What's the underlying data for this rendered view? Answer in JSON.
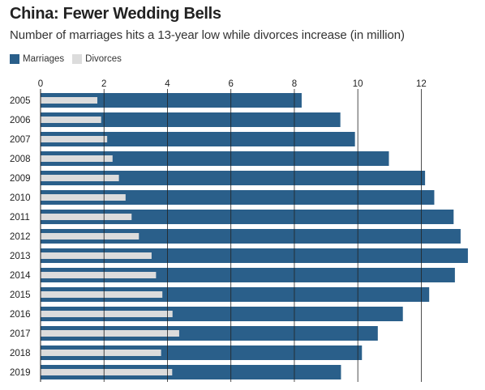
{
  "header": {
    "title": "China: Fewer Wedding Bells",
    "subtitle": "Number of marriages hits a 13-year low while divorces increase (in million)"
  },
  "legend": {
    "marriages_label": "Marriages",
    "divorces_label": "Divorces"
  },
  "colors": {
    "marriages": "#2a5f8a",
    "divorces": "#dcdcdc",
    "gridline": "#222222"
  },
  "chart_data": {
    "type": "bar",
    "orientation": "horizontal",
    "categories": [
      "2005",
      "2006",
      "2007",
      "2008",
      "2009",
      "2010",
      "2011",
      "2012",
      "2013",
      "2014",
      "2015",
      "2016",
      "2017",
      "2018",
      "2019"
    ],
    "series": [
      {
        "name": "Marriages",
        "values": [
          8.23,
          9.45,
          9.91,
          10.98,
          12.12,
          12.41,
          13.02,
          13.24,
          13.47,
          13.06,
          12.25,
          11.42,
          10.63,
          10.13,
          9.47
        ]
      },
      {
        "name": "Divorces",
        "values": [
          1.79,
          1.91,
          2.1,
          2.27,
          2.47,
          2.68,
          2.87,
          3.1,
          3.5,
          3.64,
          3.84,
          4.16,
          4.37,
          3.8,
          4.15
        ]
      }
    ],
    "xticks": [
      0,
      2,
      4,
      6,
      8,
      10,
      12
    ],
    "xlim": [
      0,
      13.6
    ],
    "grid": true,
    "legend_position": "top-left"
  }
}
